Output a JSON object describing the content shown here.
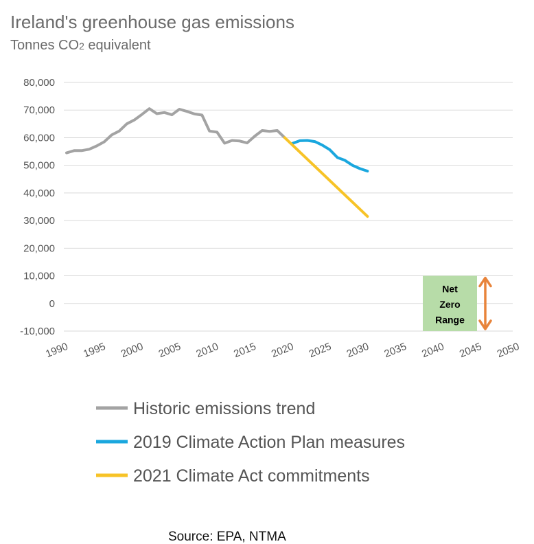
{
  "chart_data": {
    "type": "line",
    "title": "Ireland's greenhouse gas emissions",
    "subtitle_main": "Tonnes CO",
    "subtitle_sub": "2",
    "subtitle_rest": " equivalent",
    "source": "Source: EPA, NTMA",
    "ylim": [
      -10000,
      80000
    ],
    "xlim": [
      1990,
      2050
    ],
    "y_ticks": [
      80000,
      70000,
      60000,
      50000,
      40000,
      30000,
      20000,
      10000,
      0,
      -10000
    ],
    "y_tick_labels": [
      "80,000",
      "70,000",
      "60,000",
      "50,000",
      "40,000",
      "30,000",
      "20,000",
      "10,000",
      "0",
      "-10,000"
    ],
    "x_tick_labels": [
      "1990",
      "1995",
      "2000",
      "2005",
      "2010",
      "2015",
      "2020",
      "2025",
      "2030",
      "2035",
      "2040",
      "2045",
      "2050"
    ],
    "grid": true,
    "legend_position": "bottom",
    "series": [
      {
        "name": "Historic emissions trend",
        "color": "#a3a3a3",
        "x": [
          1990,
          1991,
          1992,
          1993,
          1994,
          1995,
          1996,
          1997,
          1998,
          1999,
          2000,
          2001,
          2002,
          2003,
          2004,
          2005,
          2006,
          2007,
          2008,
          2009,
          2010,
          2011,
          2012,
          2013,
          2014,
          2015,
          2016,
          2017,
          2018,
          2019
        ],
        "y": [
          54500,
          55300,
          55300,
          55800,
          57000,
          58500,
          61000,
          62400,
          65000,
          66400,
          68400,
          70500,
          68700,
          69100,
          68300,
          70300,
          69500,
          68600,
          68200,
          62400,
          62000,
          58000,
          59000,
          58800,
          58100,
          60500,
          62600,
          62300,
          62600,
          60000
        ]
      },
      {
        "name": "2019 Climate Action Plan measures",
        "color": "#1aa7de",
        "x": [
          2020,
          2021,
          2022,
          2023,
          2024,
          2025,
          2026,
          2027,
          2028,
          2029,
          2030
        ],
        "y": [
          57900,
          58900,
          59000,
          58600,
          57300,
          55600,
          52800,
          51800,
          50000,
          48800,
          47900
        ]
      },
      {
        "name": "2021 Climate Act commitments",
        "color": "#f7c327",
        "x": [
          2019,
          2030
        ],
        "y": [
          60000,
          31500
        ]
      }
    ],
    "annotation": {
      "label_lines": [
        "Net",
        "Zero",
        "Range"
      ],
      "fill": "#b7dca8",
      "arrow_color": "#e8843b",
      "x_range": [
        2039,
        2046
      ],
      "y_range": [
        -10000,
        10000
      ]
    }
  }
}
